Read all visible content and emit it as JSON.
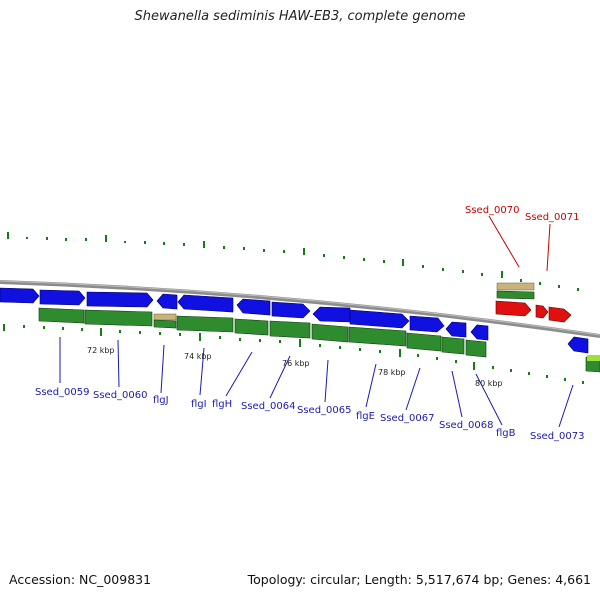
{
  "title": "Shewanella sediminis HAW-EB3, complete genome",
  "footer": {
    "accession": "Accession: NC_009831",
    "topology": "Topology: circular; Length: 5,517,674 bp; Genes: 4,661"
  },
  "colors": {
    "forward": "#1010e0",
    "reverse_cds": "#2e8b2e",
    "highlight": "#e01010",
    "gene_bar": "#c8b47a",
    "label_blue": "#1a1ab4",
    "label_red": "#cc0000",
    "backbone": "#8c8c8c",
    "tick": "#1a7a1a"
  },
  "scale_labels": [
    "72 kbp",
    "74 kbp",
    "76 kbp",
    "78 kbp",
    "80 kbp"
  ],
  "gene_labels": [
    {
      "text": "Ssed_0059",
      "color": "blue"
    },
    {
      "text": "Ssed_0060",
      "color": "blue"
    },
    {
      "text": "flgJ",
      "color": "blue"
    },
    {
      "text": "flgI",
      "color": "blue"
    },
    {
      "text": "flgH",
      "color": "blue"
    },
    {
      "text": "Ssed_0064",
      "color": "blue"
    },
    {
      "text": "Ssed_0065",
      "color": "blue"
    },
    {
      "text": "flgE",
      "color": "blue"
    },
    {
      "text": "Ssed_0067",
      "color": "blue"
    },
    {
      "text": "Ssed_0068",
      "color": "blue"
    },
    {
      "text": "flgB",
      "color": "blue"
    },
    {
      "text": "Ssed_0073",
      "color": "blue"
    },
    {
      "text": "Ssed_0070",
      "color": "red"
    },
    {
      "text": "Ssed_0071",
      "color": "red"
    }
  ]
}
